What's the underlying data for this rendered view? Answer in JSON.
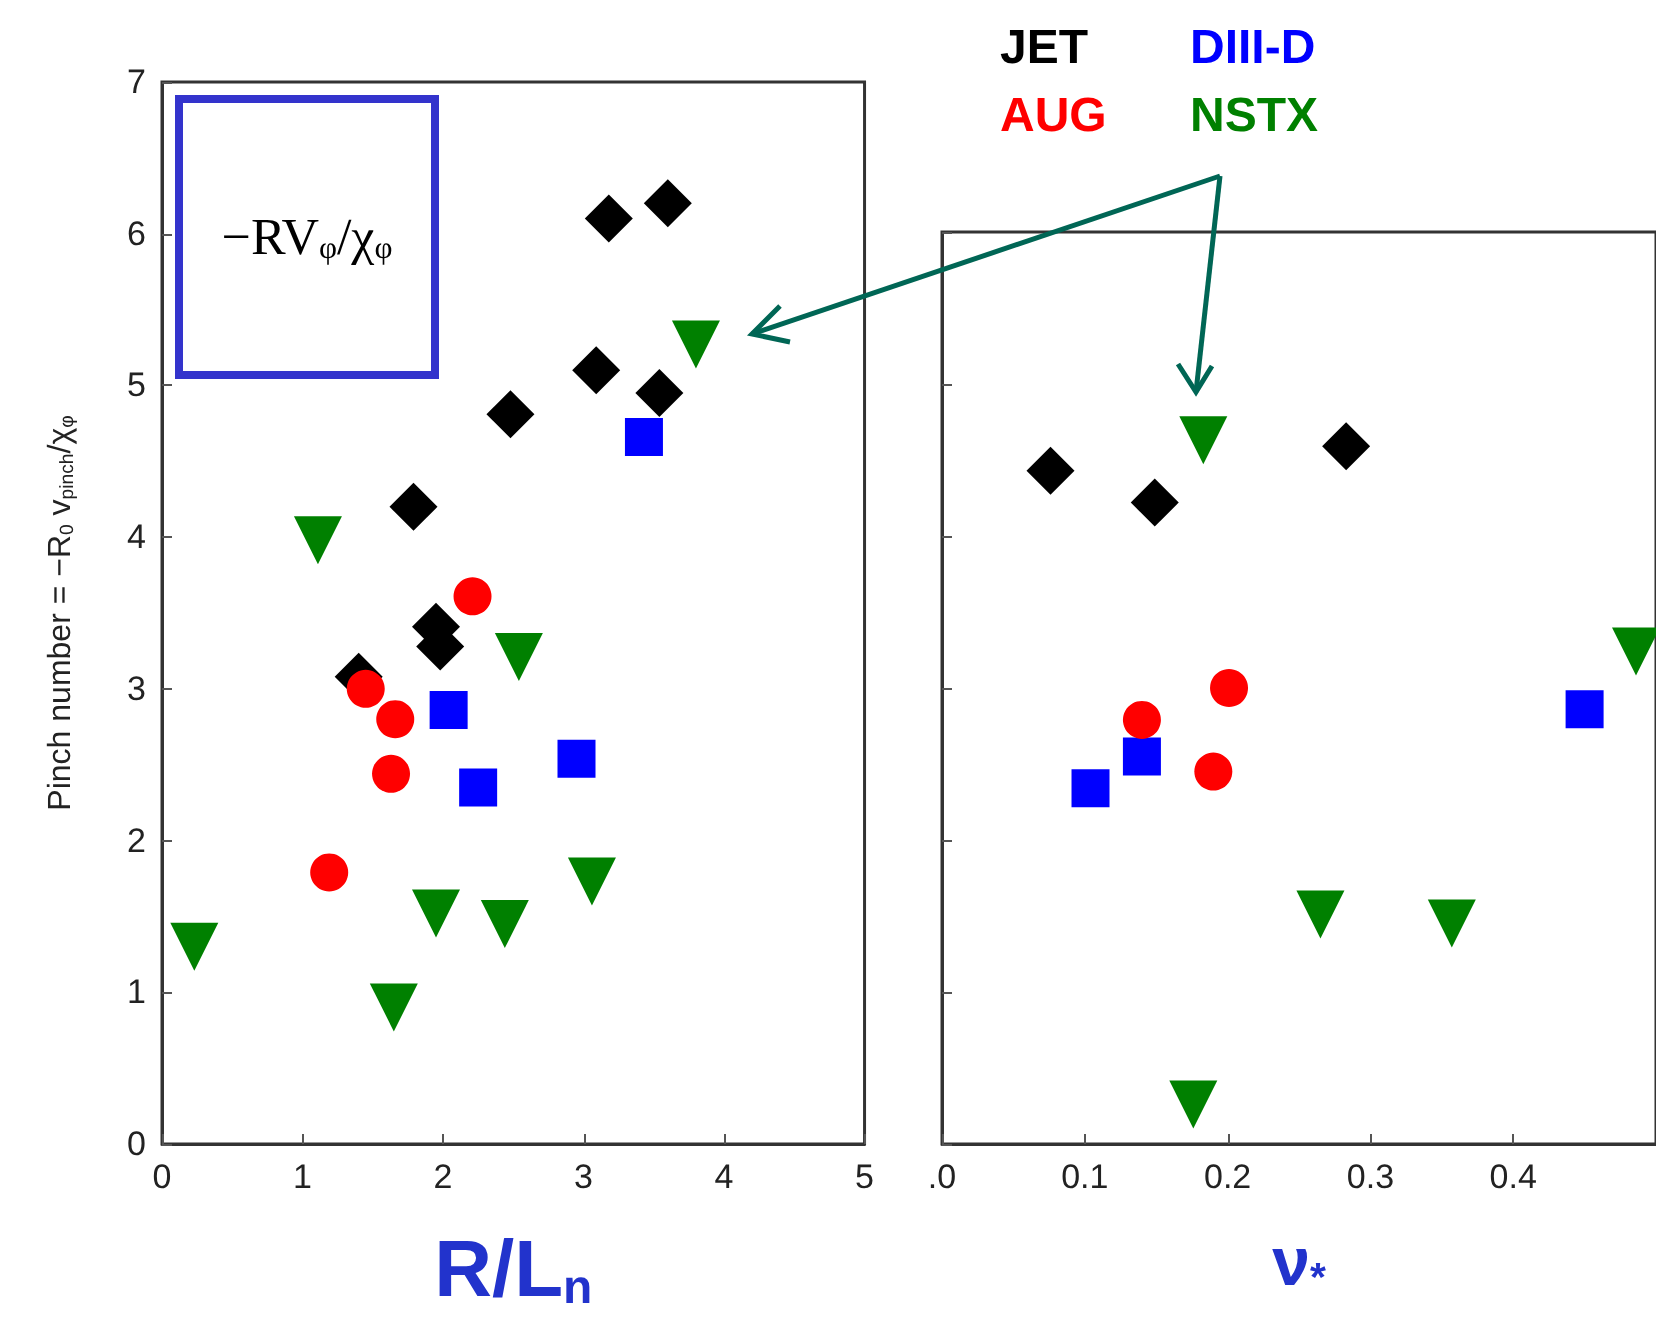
{
  "chart_data": [
    {
      "type": "scatter",
      "xlabel": "R/L$_{n}$",
      "ylabel": "Pinch number = −R$_{0}$ v$_{pinch}$/χ$_{φ}$",
      "xlim": [
        0,
        5
      ],
      "ylim": [
        0,
        7
      ],
      "xticks": [
        0,
        1,
        2,
        3,
        4,
        5
      ],
      "yticks": [
        0,
        1,
        2,
        3,
        4,
        5,
        6,
        7
      ],
      "annotations": [
        "−RV$_{φ}$/χ$_{φ}$"
      ],
      "series": [
        {
          "color": "#000000",
          "marker": "diamond",
          "x": [
            3.18,
            3.6,
            3.09,
            3.54,
            2.48,
            1.79,
            1.95,
            1.98,
            1.4
          ],
          "values": [
            6.1,
            6.2,
            5.1,
            4.95,
            4.81,
            4.2,
            3.41,
            3.28,
            3.08
          ]
        },
        {
          "color": "#0000ff",
          "marker": "square",
          "x": [
            3.43,
            2.04,
            2.25,
            2.95
          ],
          "values": [
            4.66,
            2.86,
            2.35,
            2.54
          ]
        },
        {
          "color": "#ff0000",
          "marker": "circle",
          "x": [
            2.21,
            1.45,
            1.66,
            1.63,
            1.19
          ],
          "values": [
            3.61,
            3.0,
            2.8,
            2.44,
            1.79
          ]
        },
        {
          "color": "#008000",
          "marker": "triangle",
          "x": [
            3.8,
            1.11,
            2.54,
            0.23,
            1.65,
            1.95,
            2.44,
            3.06
          ],
          "values": [
            5.27,
            3.98,
            3.21,
            1.3,
            0.9,
            1.52,
            1.45,
            1.73
          ]
        }
      ]
    },
    {
      "type": "scatter",
      "xlabel": "ν$_{*}$",
      "xlim": [
        0,
        0.5
      ],
      "ylim": [
        0,
        6
      ],
      "xticks": [
        {
          "value": 0,
          "label": ".0"
        },
        0.1,
        0.2,
        0.3,
        0.4
      ],
      "yticks": [
        0,
        1,
        2,
        3,
        4,
        5,
        6
      ],
      "tick_labels": "x",
      "series": [
        {
          "name": "JET",
          "color": "#000000",
          "marker": "diamond",
          "x": [
            0.076,
            0.149,
            0.283
          ],
          "values": [
            4.43,
            4.22,
            4.59
          ]
        },
        {
          "name": "DIII-D",
          "color": "#0000ff",
          "marker": "square",
          "x": [
            0.104,
            0.14,
            0.45
          ],
          "values": [
            2.34,
            2.55,
            2.86
          ]
        },
        {
          "name": "AUG",
          "color": "#ff0000",
          "marker": "circle",
          "x": [
            0.14,
            0.201,
            0.19
          ],
          "values": [
            2.79,
            3.0,
            2.45
          ]
        },
        {
          "name": "NSTX",
          "color": "#008000",
          "marker": "triangle",
          "x": [
            0.183,
            0.265,
            0.357,
            0.176,
            0.486
          ],
          "values": [
            4.63,
            1.51,
            1.45,
            0.26,
            3.24
          ]
        }
      ]
    }
  ]
}
